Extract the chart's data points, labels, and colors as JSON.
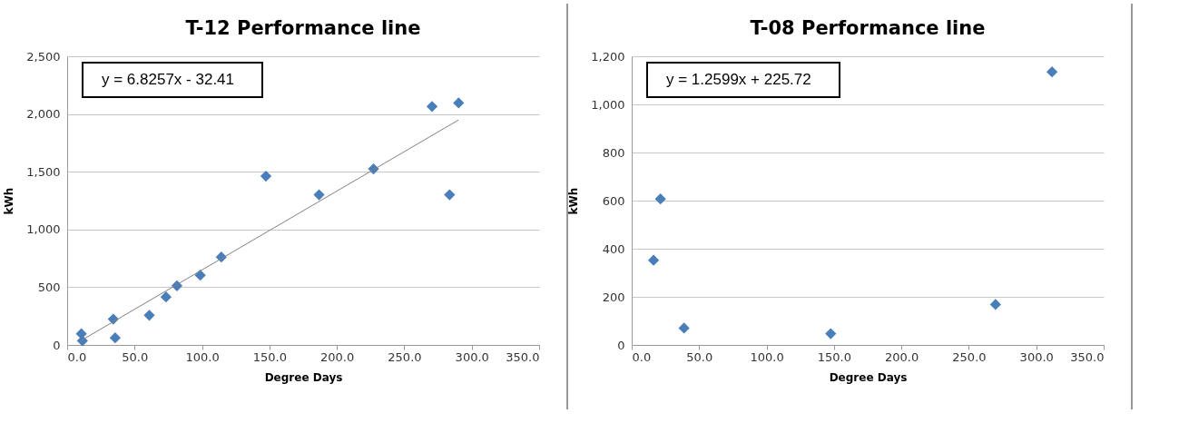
{
  "chart_data": [
    {
      "type": "scatter",
      "title": "T-12 Performance line",
      "xlabel": "Degree Days",
      "ylabel": "kWh",
      "annotations": [
        "y = 6.8257x - 32.41"
      ],
      "series": [
        {
          "color": "#4a7ebb",
          "marker": "diamond",
          "x": [
            10.5,
            11.3,
            34.2,
            35.6,
            60.9,
            73.3,
            81.4,
            98.7,
            114.3,
            147.4,
            186.8,
            227.2,
            270.6,
            283.6,
            290.3
          ],
          "values": [
            97,
            36,
            224,
            61,
            257,
            415,
            512,
            604,
            761,
            1462,
            1301,
            1525,
            2065,
            1301,
            2096
          ]
        },
        {
          "type": "line",
          "color": "#808080",
          "marker": "none",
          "x": [
            10.5,
            290.3
          ],
          "values": [
            39,
            1949
          ]
        }
      ],
      "xlim": [
        0,
        350
      ],
      "xticks": [
        {
          "value": 0,
          "label": "0.0"
        },
        {
          "value": 50,
          "label": "50.0"
        },
        {
          "value": 100,
          "label": "100.0"
        },
        {
          "value": 150,
          "label": "150.0"
        },
        {
          "value": 200,
          "label": "200.0"
        },
        {
          "value": 250,
          "label": "250.0"
        },
        {
          "value": 300,
          "label": "300.0"
        },
        {
          "value": 350,
          "label": "350.0"
        }
      ],
      "ylim": [
        0,
        2500
      ],
      "yticks": [
        0,
        500,
        {
          "value": 1000,
          "label": "1,000"
        },
        {
          "value": 1500,
          "label": "1,500"
        },
        {
          "value": 2000,
          "label": "2,000"
        },
        {
          "value": 2500,
          "label": "2,500"
        }
      ],
      "grid": "y"
    },
    {
      "type": "scatter",
      "title": "T-08 Performance line",
      "xlabel": "Degree Days",
      "ylabel": "kWh",
      "annotations": [
        "y = 1.2599x + 225.72"
      ],
      "series": [
        {
          "color": "#4a7ebb",
          "marker": "diamond",
          "x": [
            16.2,
            21.3,
            38.8,
            147.6,
            269.8,
            311.7
          ],
          "values": [
            352,
            607,
            70,
            47,
            168,
            1135
          ]
        }
      ],
      "xlim": [
        0,
        350
      ],
      "xticks": [
        {
          "value": 0,
          "label": "0.0"
        },
        {
          "value": 50,
          "label": "50.0"
        },
        {
          "value": 100,
          "label": "100.0"
        },
        {
          "value": 150,
          "label": "150.0"
        },
        {
          "value": 200,
          "label": "200.0"
        },
        {
          "value": 250,
          "label": "250.0"
        },
        {
          "value": 300,
          "label": "300.0"
        },
        {
          "value": 350,
          "label": "350.0"
        }
      ],
      "ylim": [
        0,
        1200
      ],
      "yticks": [
        0,
        200,
        400,
        600,
        800,
        {
          "value": 1000,
          "label": "1,000"
        },
        {
          "value": 1200,
          "label": "1,200"
        }
      ],
      "grid": "y"
    }
  ]
}
